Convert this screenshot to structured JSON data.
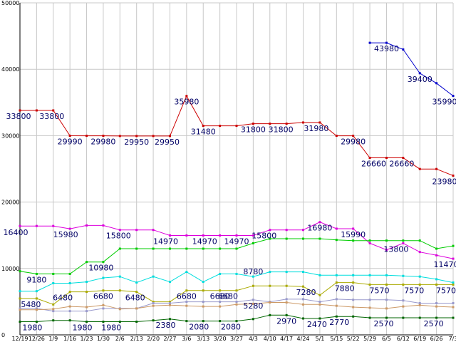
{
  "chart_data": {
    "type": "line",
    "title": "",
    "xlabel": "",
    "ylabel": "",
    "ylim": [
      0,
      50000
    ],
    "grid": true,
    "legend": "none",
    "y_ticks": [
      "0",
      "10000",
      "20000",
      "30000",
      "40000",
      "50000"
    ],
    "categories": [
      "12/19",
      "12/26",
      "1/9",
      "1/16",
      "1/23",
      "1/30",
      "2/6",
      "2/13",
      "2/20",
      "2/27",
      "3/6",
      "3/13",
      "3/20",
      "3/27",
      "4/3",
      "4/10",
      "4/17",
      "4/24",
      "5/1",
      "5/15",
      "5/22",
      "5/29",
      "6/5",
      "6/12",
      "6/19",
      "6/26",
      "7/3"
    ],
    "series": [
      {
        "color": "#0000cc",
        "values": [
          null,
          null,
          null,
          null,
          null,
          null,
          null,
          null,
          null,
          null,
          null,
          null,
          null,
          null,
          null,
          null,
          null,
          null,
          null,
          null,
          null,
          43980,
          43980,
          42980,
          39400,
          37900,
          35990
        ]
      },
      {
        "color": "#cc0000",
        "values": [
          33800,
          33800,
          33800,
          29990,
          29980,
          29980,
          29950,
          29950,
          29950,
          29950,
          35980,
          31480,
          31480,
          31480,
          31800,
          31800,
          31800,
          31980,
          31980,
          29980,
          29980,
          26660,
          26660,
          26660,
          24980,
          24980,
          23980
        ]
      },
      {
        "color": "#dd00dd",
        "values": [
          16400,
          16400,
          16400,
          15980,
          16480,
          16480,
          15800,
          15800,
          15800,
          14970,
          14970,
          14970,
          14970,
          14970,
          14970,
          15800,
          15800,
          15800,
          16980,
          15990,
          15990,
          13800,
          12800,
          13800,
          12480,
          11980,
          11470
        ]
      },
      {
        "color": "#00cc00",
        "values": [
          9580,
          9180,
          9180,
          9180,
          10980,
          10980,
          12980,
          12980,
          12980,
          12980,
          12980,
          12980,
          12980,
          12980,
          13800,
          14480,
          14480,
          14480,
          14480,
          14300,
          14200,
          14200,
          14200,
          14200,
          14200,
          12980,
          13400
        ]
      },
      {
        "color": "#00dddd",
        "values": [
          6580,
          6580,
          7780,
          7780,
          7980,
          8580,
          8780,
          7880,
          8780,
          7980,
          9480,
          7980,
          9180,
          9180,
          8780,
          9480,
          9480,
          9480,
          8980,
          8980,
          8980,
          8980,
          8980,
          8880,
          8780,
          8380,
          7880
        ]
      },
      {
        "color": "#aaaa00",
        "values": [
          5480,
          5480,
          4580,
          6480,
          6480,
          6680,
          6680,
          6480,
          4980,
          4980,
          6680,
          6680,
          6680,
          6680,
          7380,
          7380,
          7380,
          7280,
          5980,
          7880,
          7880,
          7570,
          7570,
          7570,
          7570,
          7570,
          7570
        ]
      },
      {
        "color": "#9999cc",
        "values": [
          3980,
          3980,
          3580,
          3580,
          3580,
          3980,
          3980,
          3980,
          4780,
          4780,
          4980,
          4980,
          4980,
          4980,
          5280,
          4980,
          5380,
          5380,
          4980,
          5380,
          5280,
          5280,
          5280,
          5180,
          4780,
          4780,
          4780
        ]
      },
      {
        "color": "#cc9966",
        "values": [
          3780,
          3780,
          3880,
          4280,
          4180,
          4480,
          3880,
          3980,
          4380,
          4480,
          4380,
          4280,
          4280,
          4580,
          4680,
          4880,
          4880,
          4580,
          4580,
          4380,
          4180,
          4080,
          3980,
          4280,
          4480,
          4280,
          4180
        ]
      },
      {
        "color": "#006600",
        "values": [
          1980,
          1980,
          2180,
          2180,
          1980,
          1980,
          1980,
          1980,
          2180,
          2380,
          2080,
          2080,
          2080,
          2080,
          2380,
          2970,
          2970,
          2470,
          2470,
          2770,
          2770,
          2570,
          2570,
          2570,
          2570,
          2570,
          2570
        ]
      }
    ],
    "data_labels": [
      {
        "text": "33800",
        "category": "12/19",
        "value": 33800,
        "dx": -2,
        "dy": 12
      },
      {
        "text": "33800",
        "category": "1/9",
        "value": 33800,
        "dx": -2,
        "dy": 12
      },
      {
        "text": "29990",
        "category": "1/16",
        "value": 29990,
        "dx": 0,
        "dy": 12
      },
      {
        "text": "29980",
        "category": "1/30",
        "value": 29980,
        "dx": 0,
        "dy": 12
      },
      {
        "text": "29950",
        "category": "2/13",
        "value": 29950,
        "dx": 0,
        "dy": 12
      },
      {
        "text": "29950",
        "category": "2/27",
        "value": 29950,
        "dx": -4,
        "dy": 12
      },
      {
        "text": "35980",
        "category": "3/6",
        "value": 35980,
        "dx": 0,
        "dy": 12
      },
      {
        "text": "31480",
        "category": "3/13",
        "value": 31480,
        "dx": 0,
        "dy": 12
      },
      {
        "text": "31800",
        "category": "4/3",
        "value": 31800,
        "dx": 0,
        "dy": 12
      },
      {
        "text": "31800",
        "category": "4/17",
        "value": 31800,
        "dx": -8,
        "dy": 12
      },
      {
        "text": "31980",
        "category": "5/1",
        "value": 31980,
        "dx": -5,
        "dy": 12
      },
      {
        "text": "29980",
        "category": "5/22",
        "value": 29980,
        "dx": 0,
        "dy": 12
      },
      {
        "text": "26660",
        "category": "6/5",
        "value": 26660,
        "dx": -18,
        "dy": 12
      },
      {
        "text": "26660",
        "category": "6/12",
        "value": 26660,
        "dx": -2,
        "dy": 12
      },
      {
        "text": "23980",
        "category": "7/3",
        "value": 23980,
        "dx": -12,
        "dy": 12
      },
      {
        "text": "43980",
        "category": "6/5",
        "value": 43980,
        "dx": 0,
        "dy": 12
      },
      {
        "text": "39400",
        "category": "6/19",
        "value": 39400,
        "dx": 0,
        "dy": 12
      },
      {
        "text": "35990",
        "category": "7/3",
        "value": 35990,
        "dx": -12,
        "dy": 12
      },
      {
        "text": "16400",
        "category": "12/19",
        "value": 16400,
        "dx": -6,
        "dy": 13
      },
      {
        "text": "15980",
        "category": "1/16",
        "value": 15980,
        "dx": -6,
        "dy": 12
      },
      {
        "text": "15800",
        "category": "2/6",
        "value": 15800,
        "dx": -2,
        "dy": 12
      },
      {
        "text": "14970",
        "category": "2/27",
        "value": 14970,
        "dx": -6,
        "dy": 12
      },
      {
        "text": "14970",
        "category": "3/13",
        "value": 14970,
        "dx": 2,
        "dy": 12
      },
      {
        "text": "14970",
        "category": "3/27",
        "value": 14970,
        "dx": 0,
        "dy": 12
      },
      {
        "text": "15800",
        "category": "4/10",
        "value": 15800,
        "dx": -8,
        "dy": 12
      },
      {
        "text": "16980",
        "category": "5/1",
        "value": 16980,
        "dx": 0,
        "dy": 12
      },
      {
        "text": "15990",
        "category": "5/22",
        "value": 15990,
        "dx": 0,
        "dy": 12
      },
      {
        "text": "13800",
        "category": "6/12",
        "value": 13800,
        "dx": -10,
        "dy": 12
      },
      {
        "text": "11470",
        "category": "7/3",
        "value": 11470,
        "dx": -10,
        "dy": 12
      },
      {
        "text": "9180",
        "category": "12/26",
        "value": 9180,
        "dx": 0,
        "dy": 12
      },
      {
        "text": "10980",
        "category": "1/30",
        "value": 10980,
        "dx": -3,
        "dy": 12
      },
      {
        "text": "8780",
        "category": "4/3",
        "value": 8780,
        "dx": 0,
        "dy": -3
      },
      {
        "text": "6480",
        "category": "1/16",
        "value": 6480,
        "dx": -10,
        "dy": 12
      },
      {
        "text": "6680",
        "category": "1/30",
        "value": 6680,
        "dx": 0,
        "dy": 12
      },
      {
        "text": "6480",
        "category": "2/13",
        "value": 6480,
        "dx": -2,
        "dy": 12
      },
      {
        "text": "6680",
        "category": "3/6",
        "value": 6680,
        "dx": 0,
        "dy": 12
      },
      {
        "text": "6680",
        "category": "3/27",
        "value": 6680,
        "dx": -12,
        "dy": 12
      },
      {
        "text": "7280",
        "category": "4/24",
        "value": 7280,
        "dx": 4,
        "dy": 12
      },
      {
        "text": "7880",
        "category": "5/22",
        "value": 7880,
        "dx": -12,
        "dy": 12
      },
      {
        "text": "7570",
        "category": "6/5",
        "value": 7570,
        "dx": -10,
        "dy": 12
      },
      {
        "text": "7570",
        "category": "6/19",
        "value": 7570,
        "dx": -8,
        "dy": 12
      },
      {
        "text": "7570",
        "category": "7/3",
        "value": 7570,
        "dx": -10,
        "dy": 12
      },
      {
        "text": "5480",
        "category": "12/26",
        "value": 5480,
        "dx": -8,
        "dy": 12
      },
      {
        "text": "5280",
        "category": "4/3",
        "value": 5280,
        "dx": 0,
        "dy": 12
      },
      {
        "text": "1980",
        "category": "12/26",
        "value": 1980,
        "dx": -6,
        "dy": 12
      },
      {
        "text": "1980",
        "category": "1/23",
        "value": 1980,
        "dx": -6,
        "dy": 12
      },
      {
        "text": "1980",
        "category": "2/6",
        "value": 1980,
        "dx": -12,
        "dy": 12
      },
      {
        "text": "2380",
        "category": "2/27",
        "value": 2380,
        "dx": -6,
        "dy": 12
      },
      {
        "text": "2080",
        "category": "3/13",
        "value": 2080,
        "dx": -6,
        "dy": 12
      },
      {
        "text": "6680",
        "category": "3/20",
        "value": 6680,
        "dx": 0,
        "dy": 12
      },
      {
        "text": "2080",
        "category": "3/27",
        "value": 2080,
        "dx": -8,
        "dy": 12
      },
      {
        "text": "2970",
        "category": "4/17",
        "value": 2970,
        "dx": 0,
        "dy": 12
      },
      {
        "text": "2470",
        "category": "5/1",
        "value": 2470,
        "dx": -4,
        "dy": 12
      },
      {
        "text": "2770",
        "category": "5/15",
        "value": 2770,
        "dx": 4,
        "dy": 12
      },
      {
        "text": "2570",
        "category": "6/5",
        "value": 2570,
        "dx": -4,
        "dy": 12
      },
      {
        "text": "2570",
        "category": "6/26",
        "value": 2570,
        "dx": -4,
        "dy": 12
      }
    ]
  }
}
